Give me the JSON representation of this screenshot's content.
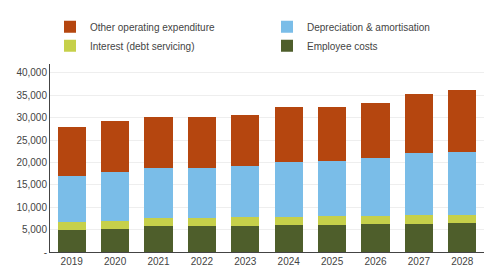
{
  "chart_data": {
    "type": "bar",
    "stacked": true,
    "categories": [
      "2019",
      "2020",
      "2021",
      "2022",
      "2023",
      "2024",
      "2025",
      "2026",
      "2027",
      "2028"
    ],
    "series": [
      {
        "name": "Employee costs",
        "color": "#4e5e2b",
        "values": [
          5000,
          5200,
          5800,
          5800,
          5900,
          6000,
          6100,
          6200,
          6300,
          6400
        ]
      },
      {
        "name": "Interest (debt servicing)",
        "color": "#c6d04a",
        "values": [
          1700,
          1800,
          1900,
          1900,
          1950,
          1900,
          1900,
          1900,
          1900,
          1900
        ]
      },
      {
        "name": "Depreciation & amortisation",
        "color": "#7abde8",
        "values": [
          10300,
          10800,
          11100,
          11100,
          11350,
          12300,
          12300,
          12800,
          14000,
          14000
        ]
      },
      {
        "name": "Other operating expenditure",
        "color": "#b5460f",
        "values": [
          11000,
          11400,
          11400,
          11400,
          11500,
          12100,
          12100,
          12500,
          13000,
          13800
        ]
      }
    ],
    "ylim": [
      0,
      42000
    ],
    "yticks": [
      {
        "value": 0,
        "label": "-"
      },
      {
        "value": 5000,
        "label": "5,000"
      },
      {
        "value": 10000,
        "label": "10,000"
      },
      {
        "value": 15000,
        "label": "15,000"
      },
      {
        "value": 20000,
        "label": "20,000"
      },
      {
        "value": 25000,
        "label": "25,000"
      },
      {
        "value": 30000,
        "label": "30,000"
      },
      {
        "value": 35000,
        "label": "35,000"
      },
      {
        "value": 40000,
        "label": "40,000"
      }
    ],
    "grid": true,
    "legend": "top"
  }
}
